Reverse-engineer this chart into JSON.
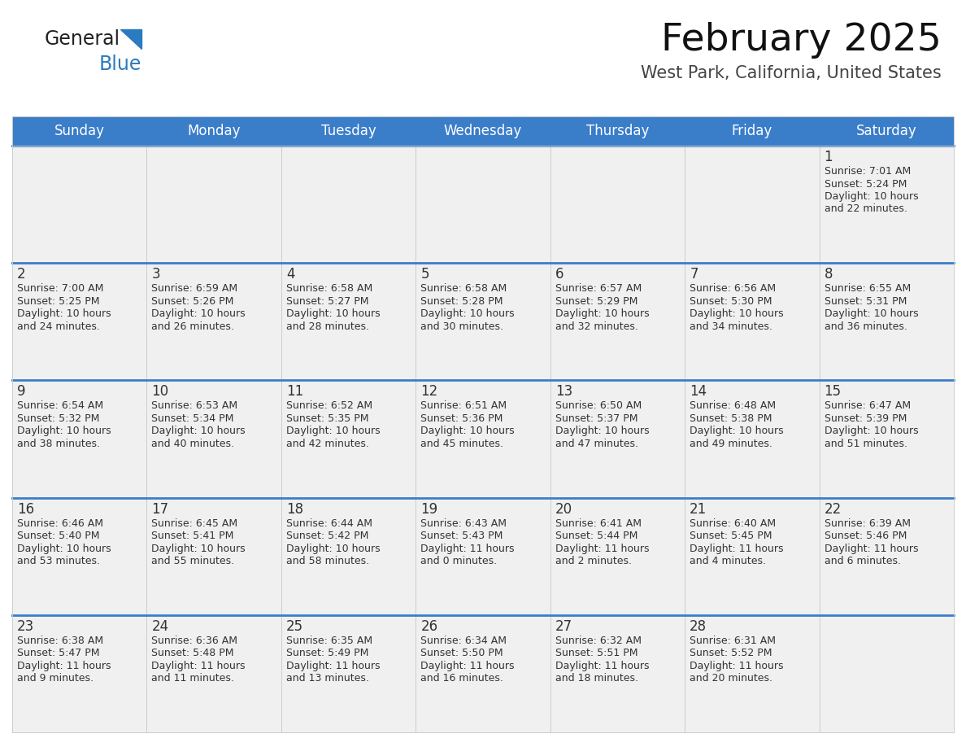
{
  "title": "February 2025",
  "subtitle": "West Park, California, United States",
  "days_of_week": [
    "Sunday",
    "Monday",
    "Tuesday",
    "Wednesday",
    "Thursday",
    "Friday",
    "Saturday"
  ],
  "header_bg": "#3A7DC9",
  "header_text": "#FFFFFF",
  "cell_bg": "#FFFFFF",
  "row_top_bg": "#E8E8E8",
  "border_color": "#AAAAAA",
  "row_border_color": "#3A7DC9",
  "day_num_color": "#333333",
  "text_color": "#333333",
  "logo_general_color": "#222222",
  "logo_blue_color": "#2A7BC0",
  "calendar": [
    [
      null,
      null,
      null,
      null,
      null,
      null,
      {
        "day": 1,
        "sunrise": "7:01 AM",
        "sunset": "5:24 PM",
        "daylight_l1": "Daylight: 10 hours",
        "daylight_l2": "and 22 minutes."
      }
    ],
    [
      {
        "day": 2,
        "sunrise": "7:00 AM",
        "sunset": "5:25 PM",
        "daylight_l1": "Daylight: 10 hours",
        "daylight_l2": "and 24 minutes."
      },
      {
        "day": 3,
        "sunrise": "6:59 AM",
        "sunset": "5:26 PM",
        "daylight_l1": "Daylight: 10 hours",
        "daylight_l2": "and 26 minutes."
      },
      {
        "day": 4,
        "sunrise": "6:58 AM",
        "sunset": "5:27 PM",
        "daylight_l1": "Daylight: 10 hours",
        "daylight_l2": "and 28 minutes."
      },
      {
        "day": 5,
        "sunrise": "6:58 AM",
        "sunset": "5:28 PM",
        "daylight_l1": "Daylight: 10 hours",
        "daylight_l2": "and 30 minutes."
      },
      {
        "day": 6,
        "sunrise": "6:57 AM",
        "sunset": "5:29 PM",
        "daylight_l1": "Daylight: 10 hours",
        "daylight_l2": "and 32 minutes."
      },
      {
        "day": 7,
        "sunrise": "6:56 AM",
        "sunset": "5:30 PM",
        "daylight_l1": "Daylight: 10 hours",
        "daylight_l2": "and 34 minutes."
      },
      {
        "day": 8,
        "sunrise": "6:55 AM",
        "sunset": "5:31 PM",
        "daylight_l1": "Daylight: 10 hours",
        "daylight_l2": "and 36 minutes."
      }
    ],
    [
      {
        "day": 9,
        "sunrise": "6:54 AM",
        "sunset": "5:32 PM",
        "daylight_l1": "Daylight: 10 hours",
        "daylight_l2": "and 38 minutes."
      },
      {
        "day": 10,
        "sunrise": "6:53 AM",
        "sunset": "5:34 PM",
        "daylight_l1": "Daylight: 10 hours",
        "daylight_l2": "and 40 minutes."
      },
      {
        "day": 11,
        "sunrise": "6:52 AM",
        "sunset": "5:35 PM",
        "daylight_l1": "Daylight: 10 hours",
        "daylight_l2": "and 42 minutes."
      },
      {
        "day": 12,
        "sunrise": "6:51 AM",
        "sunset": "5:36 PM",
        "daylight_l1": "Daylight: 10 hours",
        "daylight_l2": "and 45 minutes."
      },
      {
        "day": 13,
        "sunrise": "6:50 AM",
        "sunset": "5:37 PM",
        "daylight_l1": "Daylight: 10 hours",
        "daylight_l2": "and 47 minutes."
      },
      {
        "day": 14,
        "sunrise": "6:48 AM",
        "sunset": "5:38 PM",
        "daylight_l1": "Daylight: 10 hours",
        "daylight_l2": "and 49 minutes."
      },
      {
        "day": 15,
        "sunrise": "6:47 AM",
        "sunset": "5:39 PM",
        "daylight_l1": "Daylight: 10 hours",
        "daylight_l2": "and 51 minutes."
      }
    ],
    [
      {
        "day": 16,
        "sunrise": "6:46 AM",
        "sunset": "5:40 PM",
        "daylight_l1": "Daylight: 10 hours",
        "daylight_l2": "and 53 minutes."
      },
      {
        "day": 17,
        "sunrise": "6:45 AM",
        "sunset": "5:41 PM",
        "daylight_l1": "Daylight: 10 hours",
        "daylight_l2": "and 55 minutes."
      },
      {
        "day": 18,
        "sunrise": "6:44 AM",
        "sunset": "5:42 PM",
        "daylight_l1": "Daylight: 10 hours",
        "daylight_l2": "and 58 minutes."
      },
      {
        "day": 19,
        "sunrise": "6:43 AM",
        "sunset": "5:43 PM",
        "daylight_l1": "Daylight: 11 hours",
        "daylight_l2": "and 0 minutes."
      },
      {
        "day": 20,
        "sunrise": "6:41 AM",
        "sunset": "5:44 PM",
        "daylight_l1": "Daylight: 11 hours",
        "daylight_l2": "and 2 minutes."
      },
      {
        "day": 21,
        "sunrise": "6:40 AM",
        "sunset": "5:45 PM",
        "daylight_l1": "Daylight: 11 hours",
        "daylight_l2": "and 4 minutes."
      },
      {
        "day": 22,
        "sunrise": "6:39 AM",
        "sunset": "5:46 PM",
        "daylight_l1": "Daylight: 11 hours",
        "daylight_l2": "and 6 minutes."
      }
    ],
    [
      {
        "day": 23,
        "sunrise": "6:38 AM",
        "sunset": "5:47 PM",
        "daylight_l1": "Daylight: 11 hours",
        "daylight_l2": "and 9 minutes."
      },
      {
        "day": 24,
        "sunrise": "6:36 AM",
        "sunset": "5:48 PM",
        "daylight_l1": "Daylight: 11 hours",
        "daylight_l2": "and 11 minutes."
      },
      {
        "day": 25,
        "sunrise": "6:35 AM",
        "sunset": "5:49 PM",
        "daylight_l1": "Daylight: 11 hours",
        "daylight_l2": "and 13 minutes."
      },
      {
        "day": 26,
        "sunrise": "6:34 AM",
        "sunset": "5:50 PM",
        "daylight_l1": "Daylight: 11 hours",
        "daylight_l2": "and 16 minutes."
      },
      {
        "day": 27,
        "sunrise": "6:32 AM",
        "sunset": "5:51 PM",
        "daylight_l1": "Daylight: 11 hours",
        "daylight_l2": "and 18 minutes."
      },
      {
        "day": 28,
        "sunrise": "6:31 AM",
        "sunset": "5:52 PM",
        "daylight_l1": "Daylight: 11 hours",
        "daylight_l2": "and 20 minutes."
      },
      null
    ]
  ]
}
